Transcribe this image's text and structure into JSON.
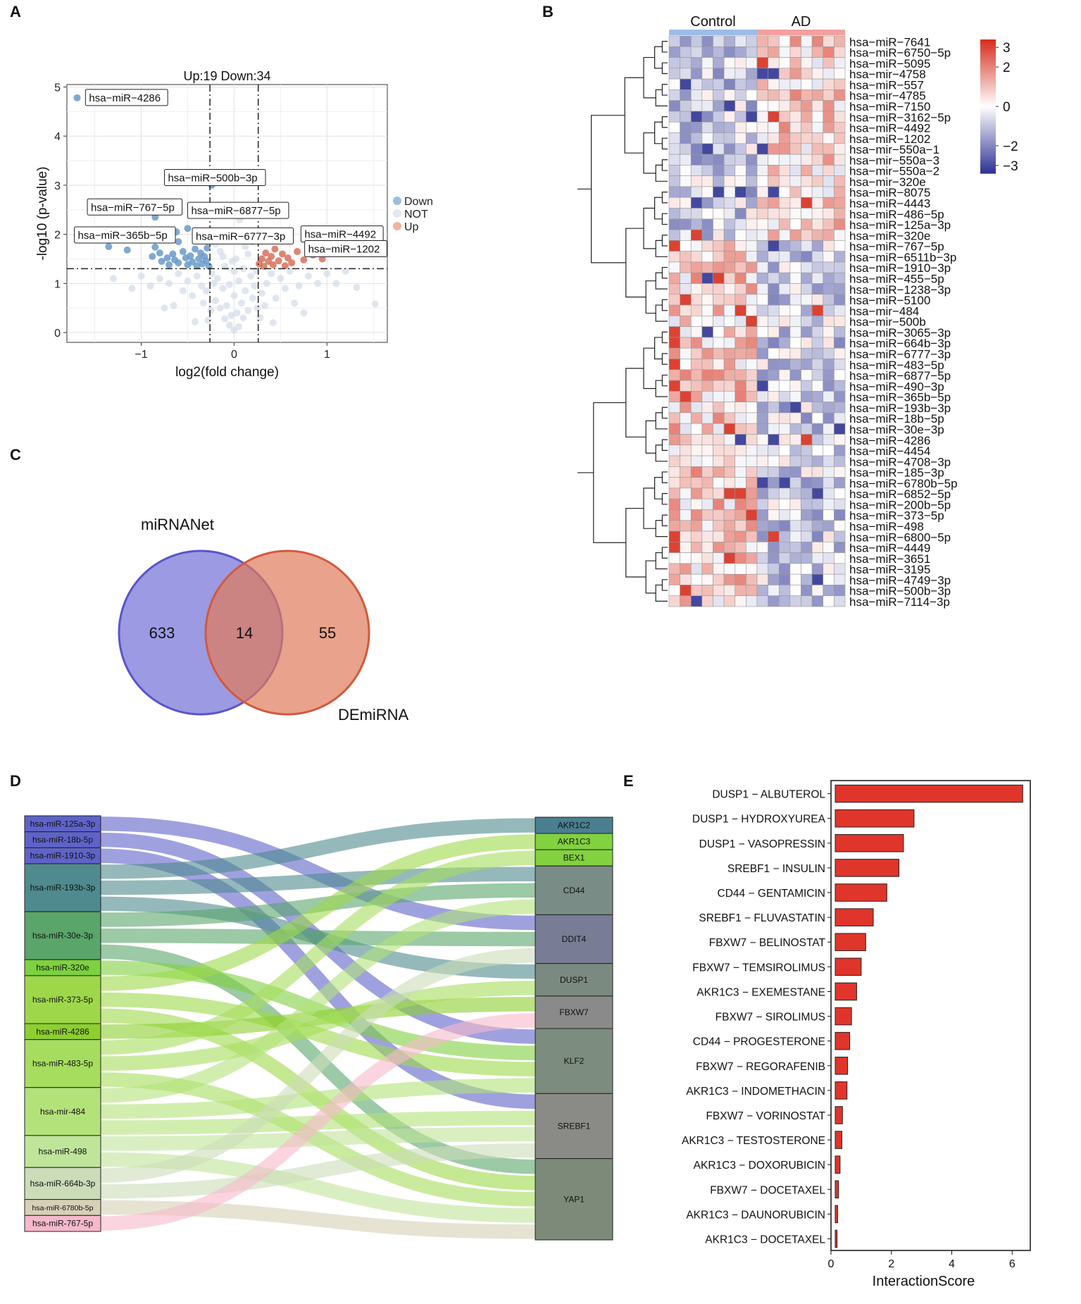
{
  "panel_letters": {
    "a": "A",
    "b": "B",
    "c": "C",
    "d": "D",
    "e": "E"
  },
  "chart_data": [
    {
      "type": "scatter",
      "panel": "A",
      "title": "Up:19 Down:34",
      "xlabel": "log2(fold change)",
      "ylabel": "-log10 (p-value)",
      "xlim": [
        -1.8,
        1.65
      ],
      "ylim": [
        -0.2,
        5.05
      ],
      "xticks": [
        -1,
        0,
        1
      ],
      "yticks": [
        0,
        1,
        2,
        3,
        4,
        5
      ],
      "thresholds": {
        "x": [
          -0.26,
          0.26
        ],
        "y": 1.3
      },
      "grid": true,
      "legend": {
        "placement": "right",
        "entries": [
          {
            "name": "Down",
            "color": "#9dbde0"
          },
          {
            "name": "NOT",
            "color": "#e4e8ef"
          },
          {
            "name": "Up",
            "color": "#f2b2a2"
          }
        ]
      },
      "series": [
        {
          "name": "Down",
          "color": "#6a9ac9",
          "points": [
            [
              -1.69,
              4.78
            ],
            [
              -0.24,
              3.0
            ],
            [
              -1.35,
              1.75
            ],
            [
              -1.15,
              1.68
            ],
            [
              -0.85,
              1.74
            ],
            [
              -0.88,
              1.55
            ],
            [
              -0.8,
              1.62
            ],
            [
              -0.78,
              1.45
            ],
            [
              -0.72,
              1.52
            ],
            [
              -0.7,
              1.38
            ],
            [
              -0.66,
              1.6
            ],
            [
              -0.64,
              1.48
            ],
            [
              -0.6,
              1.42
            ],
            [
              -0.55,
              1.65
            ],
            [
              -0.52,
              1.52
            ],
            [
              -0.5,
              1.38
            ],
            [
              -0.47,
              1.56
            ],
            [
              -0.45,
              1.44
            ],
            [
              -0.42,
              1.7
            ],
            [
              -0.4,
              1.36
            ],
            [
              -0.38,
              1.5
            ],
            [
              -0.36,
              1.62
            ],
            [
              -0.34,
              1.4
            ],
            [
              -0.32,
              1.55
            ],
            [
              -0.3,
              1.46
            ],
            [
              -0.29,
              1.72
            ],
            [
              -0.27,
              1.35
            ],
            [
              -0.62,
              2.05
            ],
            [
              -0.5,
              2.12
            ],
            [
              -0.38,
              1.95
            ],
            [
              -0.85,
              2.35
            ],
            [
              -0.95,
              1.9
            ],
            [
              -0.3,
              2.5
            ],
            [
              -0.6,
              1.85
            ]
          ]
        },
        {
          "name": "Up",
          "color": "#d9705a",
          "points": [
            [
              0.27,
              1.4
            ],
            [
              0.3,
              1.5
            ],
            [
              0.32,
              1.35
            ],
            [
              0.34,
              1.62
            ],
            [
              0.37,
              1.45
            ],
            [
              0.4,
              1.55
            ],
            [
              0.42,
              1.38
            ],
            [
              0.44,
              1.7
            ],
            [
              0.48,
              1.46
            ],
            [
              0.52,
              1.6
            ],
            [
              0.55,
              1.36
            ],
            [
              0.58,
              1.52
            ],
            [
              0.62,
              1.42
            ],
            [
              0.68,
              1.65
            ],
            [
              0.75,
              1.48
            ],
            [
              0.85,
              1.58
            ],
            [
              0.95,
              1.5
            ],
            [
              1.1,
              1.65
            ],
            [
              1.2,
              1.62
            ]
          ]
        },
        {
          "name": "NOT",
          "color": "#d3dbe8",
          "points": [
            [
              0.0,
              0.05
            ],
            [
              0.05,
              0.12
            ],
            [
              -0.05,
              0.15
            ],
            [
              0.1,
              0.3
            ],
            [
              -0.1,
              0.28
            ],
            [
              0.15,
              0.45
            ],
            [
              -0.15,
              0.5
            ],
            [
              0.2,
              0.7
            ],
            [
              -0.2,
              0.65
            ],
            [
              0.08,
              0.6
            ],
            [
              -0.08,
              0.55
            ],
            [
              0.22,
              0.95
            ],
            [
              -0.22,
              1.0
            ],
            [
              0.12,
              0.85
            ],
            [
              -0.12,
              0.9
            ],
            [
              0.18,
              1.15
            ],
            [
              -0.18,
              1.1
            ],
            [
              0.05,
              1.05
            ],
            [
              -0.05,
              0.98
            ],
            [
              0.24,
              1.25
            ],
            [
              -0.24,
              1.2
            ],
            [
              0.1,
              1.3
            ],
            [
              -0.1,
              1.35
            ],
            [
              0.02,
              1.5
            ],
            [
              -0.02,
              1.45
            ],
            [
              0.15,
              1.6
            ],
            [
              -0.15,
              1.65
            ],
            [
              0.2,
              1.85
            ],
            [
              -0.2,
              1.8
            ],
            [
              0.1,
              2.0
            ],
            [
              -0.1,
              2.05
            ],
            [
              0.06,
              2.3
            ],
            [
              0.12,
              1.75
            ],
            [
              -0.12,
              1.55
            ],
            [
              0.0,
              1.25
            ],
            [
              0.0,
              0.75
            ],
            [
              -0.03,
              0.35
            ],
            [
              0.03,
              0.4
            ],
            [
              0.25,
              0.5
            ],
            [
              -0.25,
              0.45
            ],
            [
              0.3,
              0.8
            ],
            [
              -0.3,
              0.85
            ],
            [
              0.35,
              1.0
            ],
            [
              -0.35,
              0.95
            ],
            [
              0.4,
              1.2
            ],
            [
              -0.4,
              1.15
            ],
            [
              0.45,
              0.7
            ],
            [
              -0.45,
              0.75
            ],
            [
              0.5,
              1.1
            ],
            [
              -0.5,
              1.05
            ],
            [
              0.55,
              0.9
            ],
            [
              -0.55,
              0.85
            ],
            [
              0.6,
              1.25
            ],
            [
              -0.6,
              1.2
            ],
            [
              0.7,
              0.95
            ],
            [
              -0.7,
              1.0
            ],
            [
              0.8,
              1.15
            ],
            [
              -0.8,
              1.1
            ],
            [
              0.9,
              1.0
            ],
            [
              -0.9,
              0.95
            ],
            [
              1.0,
              1.2
            ],
            [
              -1.0,
              1.15
            ],
            [
              1.1,
              1.0
            ],
            [
              -1.1,
              0.9
            ],
            [
              1.2,
              1.25
            ],
            [
              1.32,
              0.92
            ],
            [
              1.52,
              0.58
            ],
            [
              -1.3,
              1.1
            ],
            [
              0.28,
              0.3
            ],
            [
              -0.28,
              0.25
            ],
            [
              0.33,
              0.55
            ],
            [
              -0.33,
              0.6
            ],
            [
              0.65,
              0.6
            ],
            [
              -0.65,
              0.55
            ],
            [
              0.75,
              0.4
            ],
            [
              -0.75,
              0.5
            ],
            [
              0.42,
              0.2
            ],
            [
              -0.42,
              0.22
            ]
          ]
        }
      ],
      "annotations": [
        {
          "label": "hsa−miR−4286",
          "x": -1.69,
          "y": 4.78
        },
        {
          "label": "hsa−miR−500b−3p",
          "x": -0.24,
          "y": 3.0
        },
        {
          "label": "hsa−miR−767−5p",
          "x": -0.85,
          "y": 2.35
        },
        {
          "label": "hsa−miR−6877−5p",
          "x": -0.3,
          "y": 2.5
        },
        {
          "label": "hsa−miR−365b−5p",
          "x": -0.95,
          "y": 1.9
        },
        {
          "label": "hsa−miR−6777−3p",
          "x": -0.6,
          "y": 1.85
        },
        {
          "label": "hsa−miR−4492",
          "x": 0.68,
          "y": 1.65
        },
        {
          "label": "hsa−miR−1202",
          "x": 1.2,
          "y": 1.62
        }
      ]
    },
    {
      "type": "heatmap",
      "panel": "B",
      "groups": [
        {
          "name": "Control",
          "color": "#9cbde5"
        },
        {
          "name": "AD",
          "color": "#f2a0a0"
        }
      ],
      "columns_per_group": 8,
      "color_scale": {
        "min": -3.4,
        "max": 3.4,
        "low": "#313695",
        "mid": "#ffffff",
        "high": "#d7301f"
      },
      "colorbar_ticks": [
        3,
        2,
        0,
        -2,
        -3
      ],
      "colorbar_tick_labels": [
        "3",
        "2",
        "0",
        "−2",
        "−3"
      ],
      "rows": [
        "hsa−miR−7641",
        "hsa−miR−6750−5p",
        "hsa−miR−5095",
        "hsa−mir−4758",
        "hsa−miR−557",
        "hsa−mir−4785",
        "hsa−miR−7150",
        "hsa−miR−3162−5p",
        "hsa−miR−4492",
        "hsa−miR−1202",
        "hsa−mir−550a−1",
        "hsa−mir−550a−3",
        "hsa−mir−550a−2",
        "hsa−mir−320e",
        "hsa−miR−8075",
        "hsa−miR−4443",
        "hsa−miR−486−5p",
        "hsa−miR−125a−3p",
        "hsa−miR−320e",
        "hsa−miR−767−5p",
        "hsa−miR−6511b−3p",
        "hsa−miR−1910−3p",
        "hsa−miR−455−5p",
        "hsa−miR−1238−3p",
        "hsa−miR−5100",
        "hsa−mir−484",
        "hsa−mir−500b",
        "hsa−miR−3065−3p",
        "hsa−miR−664b−3p",
        "hsa−miR−6777−3p",
        "hsa−miR−483−5p",
        "hsa−miR−6877−5p",
        "hsa−miR−490−3p",
        "hsa−miR−365b−5p",
        "hsa−miR−193b−3p",
        "hsa−miR−18b−5p",
        "hsa−miR−30e−3p",
        "hsa−miR−4286",
        "hsa−miR−4454",
        "hsa−miR−4708−3p",
        "hsa−miR−185−3p",
        "hsa−miR−6780b−5p",
        "hsa−miR−6852−5p",
        "hsa−miR−200b−5p",
        "hsa−miR−373−5p",
        "hsa−miR−498",
        "hsa−miR−6800−5p",
        "hsa−miR−4449",
        "hsa−miR−3651",
        "hsa−miR−3195",
        "hsa−miR−4749−3p",
        "hsa−miR−500b−3p",
        "hsa−miR−7114−3p"
      ]
    },
    {
      "type": "venn",
      "panel": "C",
      "sets": [
        {
          "name": "miRNANet",
          "only": 633,
          "color": "#7b78d8"
        },
        {
          "name": "DEmiRNA",
          "only": 55,
          "color": "#e07a5a"
        }
      ],
      "intersection": 14
    },
    {
      "type": "sankey",
      "panel": "D",
      "left_nodes": [
        {
          "name": "hsa-miR-125a-3p",
          "weight": 1,
          "color": "#5f63c9"
        },
        {
          "name": "hsa-miR-18b-5p",
          "weight": 1,
          "color": "#5f63c9"
        },
        {
          "name": "hsa-miR-1910-3p",
          "weight": 1,
          "color": "#5f63c9"
        },
        {
          "name": "hsa-miR-193b-3p",
          "weight": 3,
          "color": "#4f8a8e"
        },
        {
          "name": "hsa-miR-30e-3p",
          "weight": 3,
          "color": "#5aa56a"
        },
        {
          "name": "hsa-miR-320e",
          "weight": 1,
          "color": "#7ed13f"
        },
        {
          "name": "hsa-miR-373-5p",
          "weight": 3,
          "color": "#9ed84a"
        },
        {
          "name": "hsa-miR-4286",
          "weight": 1,
          "color": "#8ccf2f"
        },
        {
          "name": "hsa-miR-483-5p",
          "weight": 3,
          "color": "#a6dd5e"
        },
        {
          "name": "hsa-mir-484",
          "weight": 3,
          "color": "#b3e27a"
        },
        {
          "name": "hsa-miR-498",
          "weight": 2,
          "color": "#bfe59a"
        },
        {
          "name": "hsa-miR-664b-3p",
          "weight": 2,
          "color": "#ccdcb8"
        },
        {
          "name": "hsa-miR-6780b-5p",
          "weight": 1,
          "color": "#d6d0b6"
        },
        {
          "name": "hsa-miR-767-5p",
          "weight": 1,
          "color": "#f6b9cc"
        }
      ],
      "right_nodes": [
        {
          "name": "AKR1C2",
          "weight": 1,
          "color": "#4a7f90"
        },
        {
          "name": "AKR1C3",
          "weight": 1,
          "color": "#82d13f"
        },
        {
          "name": "BEX1",
          "weight": 1,
          "color": "#82d13f"
        },
        {
          "name": "CD44",
          "weight": 3,
          "color": "#7a8c86"
        },
        {
          "name": "DDIT4",
          "weight": 3,
          "color": "#787c94"
        },
        {
          "name": "DUSP1",
          "weight": 2,
          "color": "#7b8a80"
        },
        {
          "name": "FBXW7",
          "weight": 2,
          "color": "#8a8a8a"
        },
        {
          "name": "KLF2",
          "weight": 4,
          "color": "#7c8c7e"
        },
        {
          "name": "SREBF1",
          "weight": 4,
          "color": "#8a8a86"
        },
        {
          "name": "YAP1",
          "weight": 5,
          "color": "#7d8a7a"
        }
      ],
      "links": [
        [
          "hsa-miR-125a-3p",
          "DDIT4"
        ],
        [
          "hsa-miR-18b-5p",
          "KLF2"
        ],
        [
          "hsa-miR-1910-3p",
          "SREBF1"
        ],
        [
          "hsa-miR-193b-3p",
          "AKR1C2"
        ],
        [
          "hsa-miR-193b-3p",
          "CD44"
        ],
        [
          "hsa-miR-193b-3p",
          "DUSP1"
        ],
        [
          "hsa-miR-30e-3p",
          "CD44"
        ],
        [
          "hsa-miR-30e-3p",
          "DDIT4"
        ],
        [
          "hsa-miR-30e-3p",
          "YAP1"
        ],
        [
          "hsa-miR-320e",
          "KLF2"
        ],
        [
          "hsa-miR-373-5p",
          "AKR1C3"
        ],
        [
          "hsa-miR-373-5p",
          "KLF2"
        ],
        [
          "hsa-miR-373-5p",
          "YAP1"
        ],
        [
          "hsa-miR-4286",
          "FBXW7"
        ],
        [
          "hsa-miR-483-5p",
          "BEX1"
        ],
        [
          "hsa-miR-483-5p",
          "DUSP1"
        ],
        [
          "hsa-miR-483-5p",
          "YAP1"
        ],
        [
          "hsa-mir-484",
          "CD44"
        ],
        [
          "hsa-mir-484",
          "KLF2"
        ],
        [
          "hsa-mir-484",
          "SREBF1"
        ],
        [
          "hsa-miR-498",
          "SREBF1"
        ],
        [
          "hsa-miR-498",
          "YAP1"
        ],
        [
          "hsa-miR-664b-3p",
          "DDIT4"
        ],
        [
          "hsa-miR-664b-3p",
          "SREBF1"
        ],
        [
          "hsa-miR-6780b-5p",
          "YAP1"
        ],
        [
          "hsa-miR-767-5p",
          "FBXW7"
        ]
      ]
    },
    {
      "type": "bar",
      "panel": "E",
      "orientation": "horizontal",
      "xlabel": "InteractionScore",
      "xlim": [
        0,
        6.6
      ],
      "xticks": [
        0,
        2,
        4,
        6
      ],
      "bar_color": "#e0352b",
      "categories": [
        "DUSP1 − ALBUTEROL",
        "DUSP1 − HYDROXYUREA",
        "DUSP1 − VASOPRESSIN",
        "SREBF1 − INSULIN",
        "CD44 − GENTAMICIN",
        "SREBF1 − FLUVASTATIN",
        "FBXW7 − BELINOSTAT",
        "FBXW7 − TEMSIROLIMUS",
        "AKR1C3 − EXEMESTANE",
        "FBXW7 − SIROLIMUS",
        "CD44 − PROGESTERONE",
        "FBXW7 − REGORAFENIB",
        "AKR1C3 − INDOMETHACIN",
        "FBXW7 − VORINOSTAT",
        "AKR1C3 − TESTOSTERONE",
        "AKR1C3 − DOXORUBICIN",
        "FBXW7 − DOCETAXEL",
        "AKR1C3 − DAUNORUBICIN",
        "AKR1C3 − DOCETAXEL"
      ],
      "values": [
        6.35,
        2.75,
        2.4,
        2.25,
        1.85,
        1.4,
        1.15,
        1.0,
        0.85,
        0.68,
        0.62,
        0.55,
        0.53,
        0.38,
        0.36,
        0.3,
        0.25,
        0.22,
        0.2
      ]
    }
  ]
}
